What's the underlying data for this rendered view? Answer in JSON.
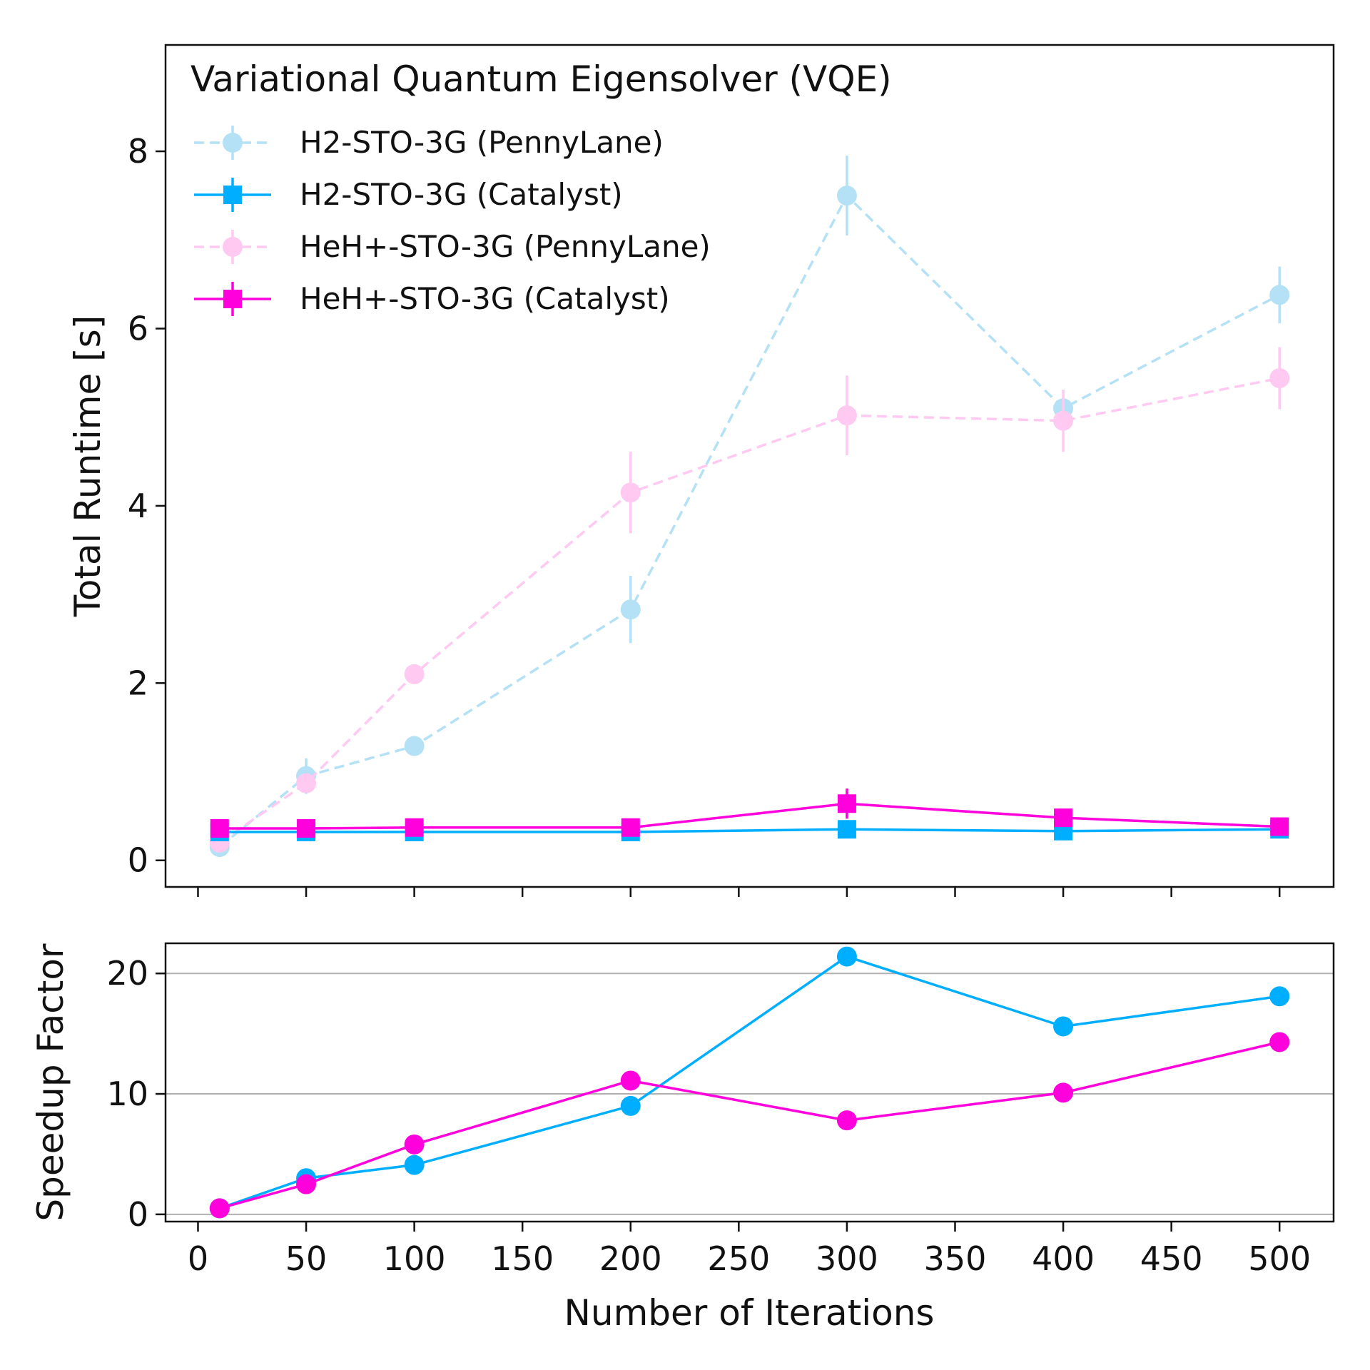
{
  "chart_data": [
    {
      "type": "line",
      "title": "Variational Quantum Eigensolver (VQE)",
      "xlabel": "",
      "ylabel": "Total Runtime [s]",
      "xlim": [
        -15,
        525
      ],
      "ylim": [
        -0.3,
        9.2
      ],
      "yticks": [
        "0",
        "2",
        "4",
        "6",
        "8"
      ],
      "grid": false,
      "legend_position": "top-left",
      "x": [
        10,
        50,
        100,
        200,
        300,
        400,
        500
      ],
      "series": [
        {
          "name": "H2-STO-3G (PennyLane)",
          "color": "#b4e1f5",
          "dashed": true,
          "marker": "circle",
          "values": [
            0.15,
            0.95,
            1.29,
            2.83,
            7.5,
            5.1,
            6.38
          ],
          "errors": [
            0.05,
            0.2,
            0.1,
            0.38,
            0.45,
            0.1,
            0.32
          ]
        },
        {
          "name": "H2-STO-3G (Catalyst)",
          "color": "#00aeff",
          "dashed": false,
          "marker": "square",
          "values": [
            0.32,
            0.32,
            0.32,
            0.32,
            0.35,
            0.33,
            0.35
          ],
          "errors": [
            0.02,
            0.02,
            0.02,
            0.02,
            0.03,
            0.02,
            0.02
          ]
        },
        {
          "name": "HeH+-STO-3G (PennyLane)",
          "color": "#ffc9f1",
          "dashed": true,
          "marker": "circle",
          "values": [
            0.2,
            0.87,
            2.1,
            4.15,
            5.02,
            4.96,
            5.44
          ],
          "errors": [
            0.05,
            0.1,
            0.1,
            0.46,
            0.45,
            0.35,
            0.35
          ]
        },
        {
          "name": "HeH+-STO-3G (Catalyst)",
          "color": "#ff00dd",
          "dashed": false,
          "marker": "square",
          "values": [
            0.36,
            0.36,
            0.37,
            0.37,
            0.64,
            0.48,
            0.38
          ],
          "errors": [
            0.02,
            0.02,
            0.02,
            0.02,
            0.17,
            0.05,
            0.02
          ]
        }
      ]
    },
    {
      "type": "line",
      "title": "",
      "xlabel": "Number of Iterations",
      "ylabel": "Speedup Factor",
      "xlim": [
        -15,
        525
      ],
      "ylim": [
        -0.6,
        22.5
      ],
      "xticks": [
        "0",
        "50",
        "100",
        "150",
        "200",
        "250",
        "300",
        "350",
        "400",
        "450",
        "500"
      ],
      "yticks": [
        "0",
        "10",
        "20"
      ],
      "grid": true,
      "x": [
        10,
        50,
        100,
        200,
        300,
        400,
        500
      ],
      "series": [
        {
          "color": "#00aeff",
          "marker": "circle",
          "values": [
            0.5,
            3.0,
            4.1,
            9.0,
            21.4,
            15.6,
            18.1
          ]
        },
        {
          "color": "#ff00dd",
          "marker": "circle",
          "values": [
            0.5,
            2.5,
            5.8,
            11.1,
            7.8,
            10.1,
            14.3
          ]
        }
      ]
    }
  ]
}
